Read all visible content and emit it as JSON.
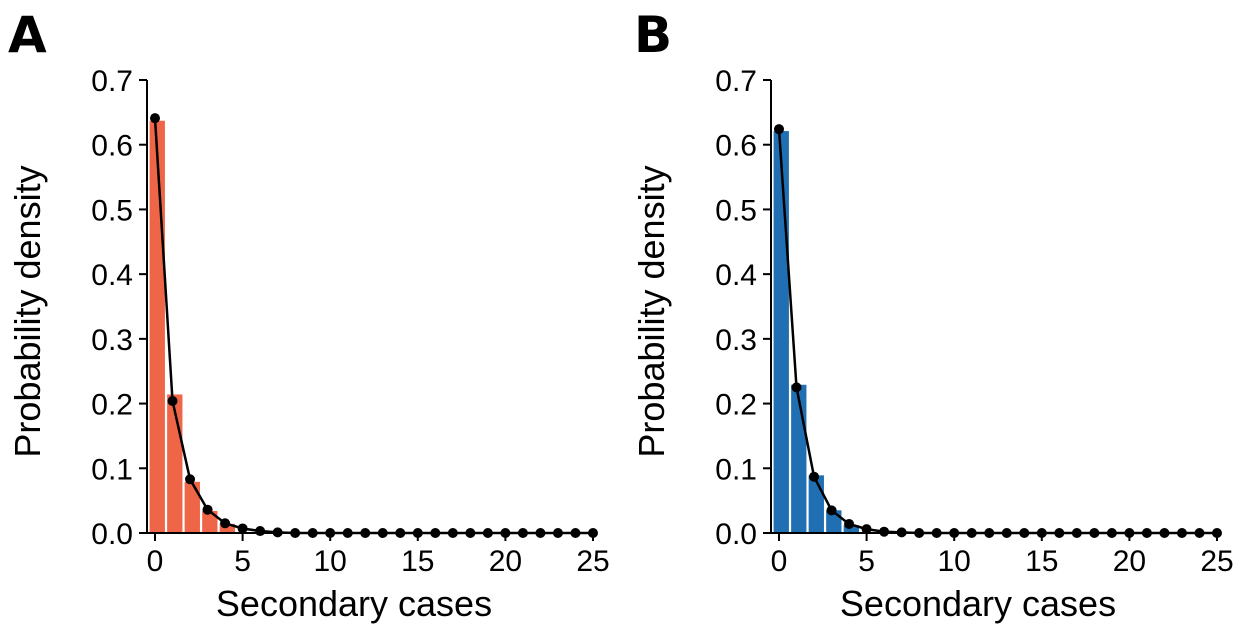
{
  "panels": [
    {
      "label": "A",
      "color": "#ef6548",
      "chart_data": {
        "type": "bar",
        "title": "",
        "xlabel": "Secondary cases",
        "ylabel": "Probability density",
        "xlim": [
          0,
          25
        ],
        "ylim": [
          0,
          0.7
        ],
        "xticks": [
          0,
          5,
          10,
          15,
          20,
          25
        ],
        "yticks": [
          "0.0",
          "0.1",
          "0.2",
          "0.3",
          "0.4",
          "0.5",
          "0.6",
          "0.7"
        ],
        "grid": false,
        "bars": {
          "x": [
            0,
            1,
            2,
            3,
            4
          ],
          "values": [
            0.638,
            0.215,
            0.08,
            0.035,
            0.015
          ]
        },
        "line": {
          "x": [
            0,
            1,
            2,
            3,
            4,
            5,
            6,
            7,
            8,
            9,
            10,
            11,
            12,
            13,
            14,
            15,
            16,
            17,
            18,
            19,
            20,
            21,
            22,
            23,
            24,
            25
          ],
          "values": [
            0.641,
            0.204,
            0.083,
            0.036,
            0.015,
            0.007,
            0.003,
            0.001,
            0,
            0,
            0,
            0,
            0,
            0,
            0,
            0,
            0,
            0,
            0,
            0,
            0,
            0,
            0,
            0,
            0,
            0
          ]
        }
      }
    },
    {
      "label": "B",
      "color": "#1f6fb2",
      "chart_data": {
        "type": "bar",
        "title": "",
        "xlabel": "Secondary cases",
        "ylabel": "Probability density",
        "xlim": [
          0,
          25
        ],
        "ylim": [
          0,
          0.7
        ],
        "xticks": [
          0,
          5,
          10,
          15,
          20,
          25
        ],
        "yticks": [
          "0.0",
          "0.1",
          "0.2",
          "0.3",
          "0.4",
          "0.5",
          "0.6",
          "0.7"
        ],
        "grid": false,
        "bars": {
          "x": [
            0,
            1,
            2,
            3,
            4
          ],
          "values": [
            0.622,
            0.23,
            0.09,
            0.036,
            0.013
          ]
        },
        "line": {
          "x": [
            0,
            1,
            2,
            3,
            4,
            5,
            6,
            7,
            8,
            9,
            10,
            11,
            12,
            13,
            14,
            15,
            16,
            17,
            18,
            19,
            20,
            21,
            22,
            23,
            24,
            25
          ],
          "values": [
            0.624,
            0.225,
            0.087,
            0.035,
            0.014,
            0.006,
            0.002,
            0.001,
            0,
            0,
            0,
            0,
            0,
            0,
            0,
            0,
            0,
            0,
            0,
            0,
            0,
            0,
            0,
            0,
            0,
            0
          ]
        }
      }
    }
  ]
}
